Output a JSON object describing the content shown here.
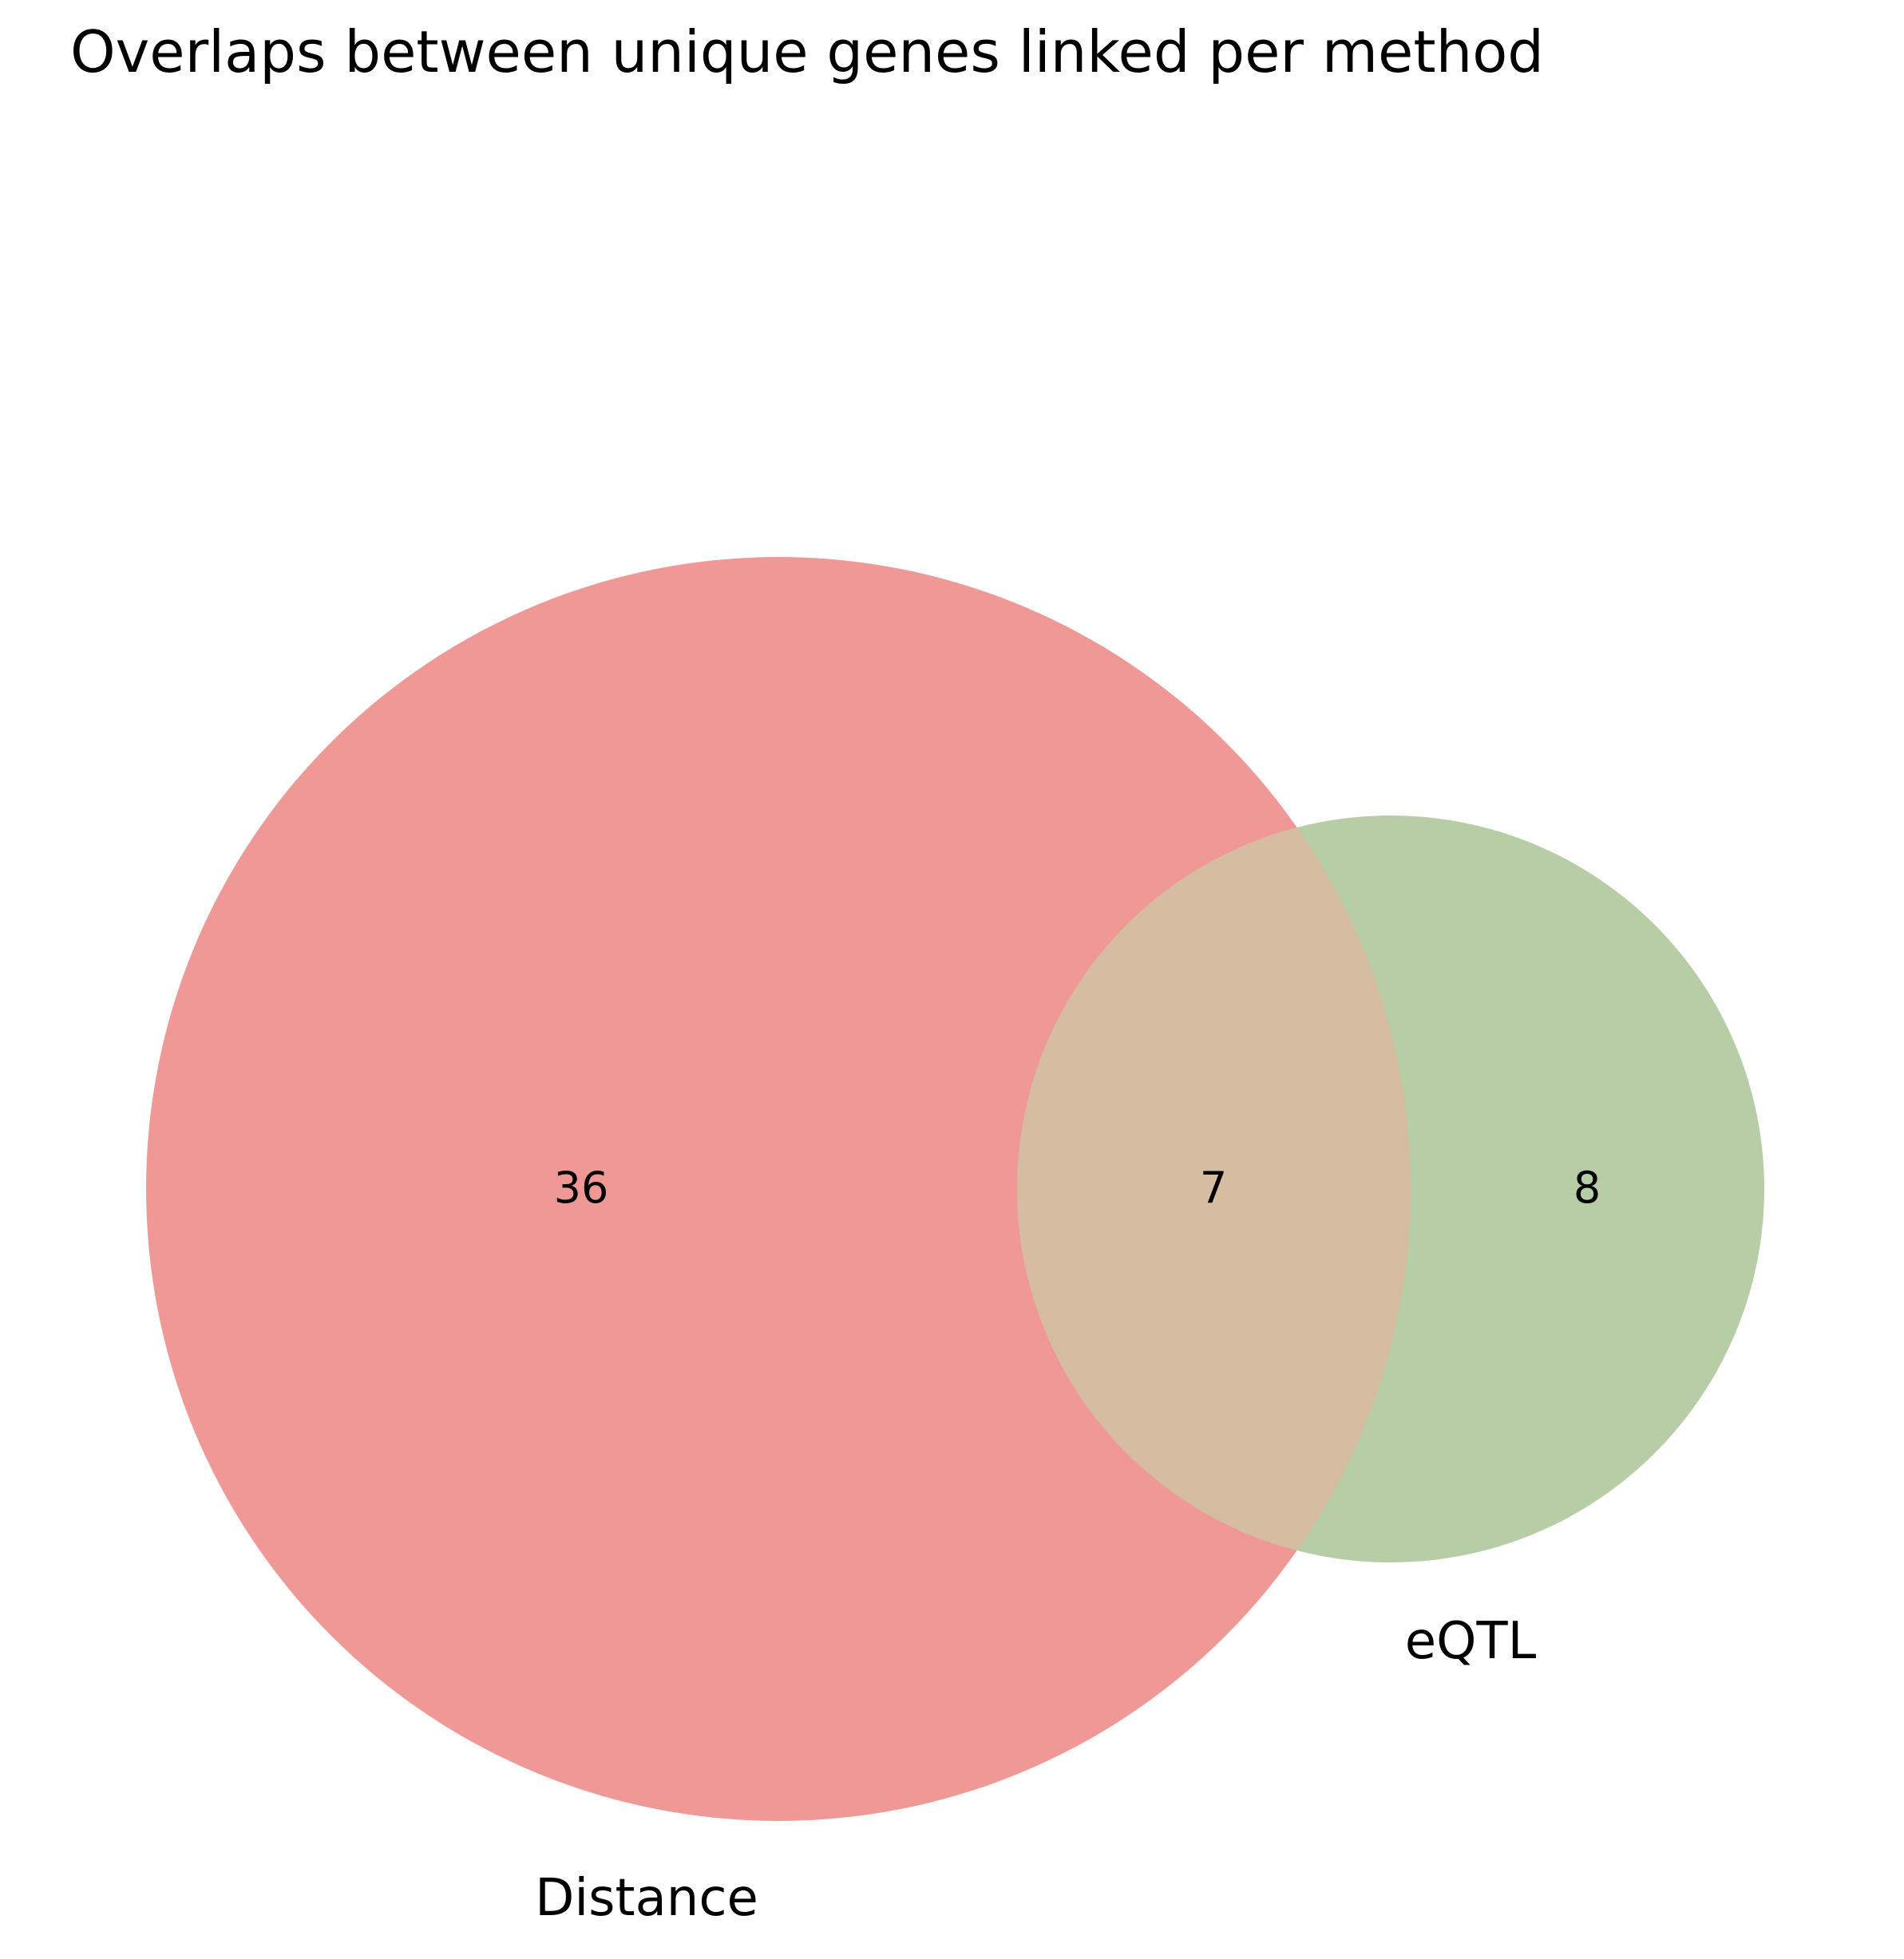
{
  "title": "Overlaps between unique genes linked per method",
  "sets": {
    "distance": {
      "label": "Distance",
      "color": "#f09896"
    },
    "eqtl": {
      "label": "eQTL",
      "color": "#b6cda5"
    },
    "overlap_color": "#d6bca0"
  },
  "counts": {
    "distance_only": "36",
    "overlap": "7",
    "eqtl_only": "8"
  }
}
